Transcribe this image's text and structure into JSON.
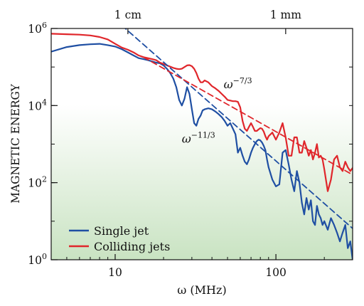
{
  "chart_data": {
    "type": "line",
    "ylabel": "MAGNETIC ENERGY",
    "xlabel": "ω (MHz)",
    "x_scale": "log",
    "y_scale": "log",
    "xlim": [
      4,
      300
    ],
    "ylim": [
      1,
      1000000
    ],
    "grid": false,
    "x_ticks": [
      {
        "value": 10,
        "label": "10"
      },
      {
        "value": 100,
        "label": "100"
      }
    ],
    "y_ticks": [
      {
        "value": 1,
        "base": "10",
        "exp": "0"
      },
      {
        "value": 100,
        "base": "10",
        "exp": "2"
      },
      {
        "value": 10000,
        "base": "10",
        "exp": "4"
      },
      {
        "value": 1000000,
        "base": "10",
        "exp": "6"
      }
    ],
    "top_axis_ticks": [
      {
        "value": 12,
        "label": "1 cm"
      },
      {
        "value": 115,
        "label": "1 mm"
      }
    ],
    "legend_position": "bottom-left",
    "series": [
      {
        "name": "Single jet",
        "color": "#1f4fa3",
        "x": [
          4,
          5,
          6,
          7,
          8,
          9,
          10,
          11,
          12,
          13,
          14,
          15,
          16,
          17,
          18,
          19,
          20,
          21,
          22,
          23,
          24,
          25,
          26,
          27,
          28,
          29,
          30,
          31,
          32,
          33,
          34,
          35,
          36,
          38,
          40,
          42,
          44,
          46,
          48,
          50,
          52,
          54,
          56,
          58,
          60,
          62,
          64,
          66,
          68,
          70,
          72,
          74,
          76,
          78,
          80,
          82,
          84,
          86,
          88,
          90,
          95,
          100,
          105,
          110,
          115,
          120,
          125,
          130,
          135,
          140,
          145,
          150,
          155,
          160,
          165,
          170,
          175,
          180,
          185,
          190,
          195,
          200,
          210,
          220,
          230,
          240,
          250,
          260,
          270,
          280,
          290,
          300
        ],
        "y": [
          250000,
          330000,
          370000,
          390000,
          400000,
          370000,
          340000,
          290000,
          240000,
          200000,
          170000,
          160000,
          150000,
          140000,
          130000,
          125000,
          110000,
          90000,
          70000,
          50000,
          30000,
          14000,
          10000,
          15000,
          30000,
          20000,
          8000,
          3500,
          3000,
          4500,
          5500,
          7500,
          8000,
          8500,
          8000,
          7000,
          6000,
          5000,
          4000,
          3000,
          3500,
          2500,
          1800,
          600,
          800,
          500,
          350,
          300,
          400,
          600,
          800,
          1000,
          1200,
          1300,
          1250,
          1100,
          900,
          700,
          400,
          250,
          120,
          80,
          90,
          600,
          700,
          300,
          120,
          60,
          200,
          100,
          30,
          15,
          40,
          20,
          35,
          10,
          8,
          25,
          15,
          12,
          8,
          10,
          6,
          12,
          8,
          5,
          3,
          5,
          8,
          2,
          3,
          1
        ]
      },
      {
        "name": "Colliding jets",
        "color": "#e0262b",
        "x": [
          4,
          5,
          6,
          7,
          8,
          9,
          10,
          11,
          12,
          13,
          14,
          15,
          16,
          17,
          18,
          19,
          20,
          21,
          22,
          23,
          24,
          25,
          26,
          27,
          28,
          29,
          30,
          31,
          32,
          33,
          34,
          35,
          36,
          38,
          40,
          42,
          44,
          46,
          48,
          50,
          52,
          54,
          56,
          58,
          60,
          62,
          64,
          66,
          68,
          70,
          72,
          74,
          76,
          78,
          80,
          82,
          84,
          86,
          88,
          90,
          95,
          100,
          105,
          110,
          115,
          120,
          125,
          130,
          135,
          140,
          145,
          150,
          155,
          160,
          165,
          170,
          175,
          180,
          185,
          190,
          195,
          200,
          210,
          220,
          230,
          240,
          250,
          260,
          270,
          280,
          290,
          300
        ],
        "y": [
          730000,
          710000,
          690000,
          660000,
          600000,
          520000,
          400000,
          320000,
          280000,
          240000,
          200000,
          180000,
          170000,
          160000,
          150000,
          130000,
          120000,
          110000,
          102000,
          95000,
          90000,
          88000,
          90000,
          100000,
          110000,
          112000,
          105000,
          90000,
          70000,
          50000,
          40000,
          40000,
          45000,
          40000,
          32000,
          28000,
          24000,
          20000,
          17000,
          14000,
          13500,
          13000,
          13000,
          12500,
          9000,
          4000,
          2500,
          2200,
          2800,
          3500,
          2800,
          2200,
          2200,
          2400,
          2600,
          2500,
          2100,
          1600,
          1300,
          1600,
          2000,
          1300,
          2000,
          3500,
          1500,
          500,
          500,
          1500,
          1500,
          600,
          600,
          1200,
          800,
          500,
          700,
          400,
          600,
          1000,
          450,
          500,
          400,
          220,
          60,
          120,
          400,
          500,
          250,
          200,
          350,
          250,
          200,
          240
        ]
      },
      {
        "name": "ω^−11/3 fit",
        "color": "#1f4fa3",
        "style": "dashed",
        "x": [
          11,
          300
        ],
        "y": [
          1200000,
          6.5
        ]
      },
      {
        "name": "ω^−7/3 fit",
        "color": "#e0262b",
        "style": "dashed",
        "x": [
          15,
          300
        ],
        "y": [
          180000,
          160
        ]
      }
    ],
    "annotations": [
      {
        "base": "ω",
        "exp": "−7/3",
        "x": 58,
        "y": 28000
      },
      {
        "base": "ω",
        "exp": "−11/3",
        "x": 33,
        "y": 1100
      }
    ]
  }
}
